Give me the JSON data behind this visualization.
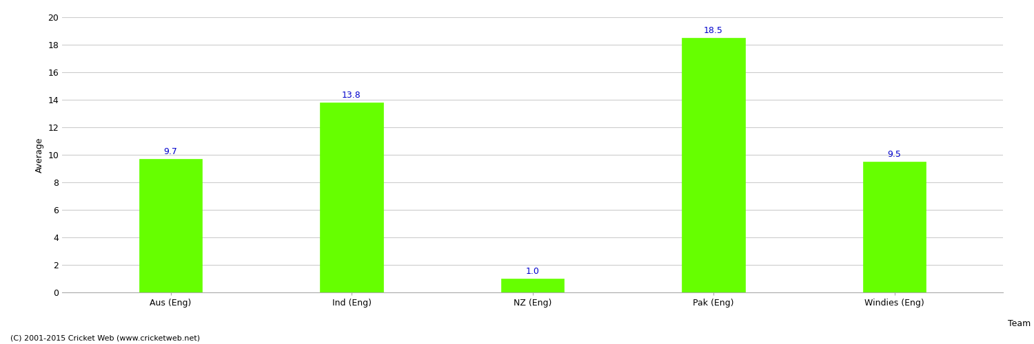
{
  "categories": [
    "Aus (Eng)",
    "Ind (Eng)",
    "NZ (Eng)",
    "Pak (Eng)",
    "Windies (Eng)"
  ],
  "values": [
    9.7,
    13.8,
    1.0,
    18.5,
    9.5
  ],
  "bar_color": "#66ff00",
  "bar_edge_color": "#66ff00",
  "value_label_color": "#0000cc",
  "value_label_fontsize": 9,
  "xlabel": "Team",
  "ylabel": "Average",
  "ylim": [
    0,
    20
  ],
  "yticks": [
    0,
    2,
    4,
    6,
    8,
    10,
    12,
    14,
    16,
    18,
    20
  ],
  "grid_color": "#cccccc",
  "background_color": "#ffffff",
  "tick_label_fontsize": 9,
  "axis_label_fontsize": 9,
  "footer_text": "(C) 2001-2015 Cricket Web (www.cricketweb.net)",
  "footer_fontsize": 8,
  "bar_width": 0.35
}
